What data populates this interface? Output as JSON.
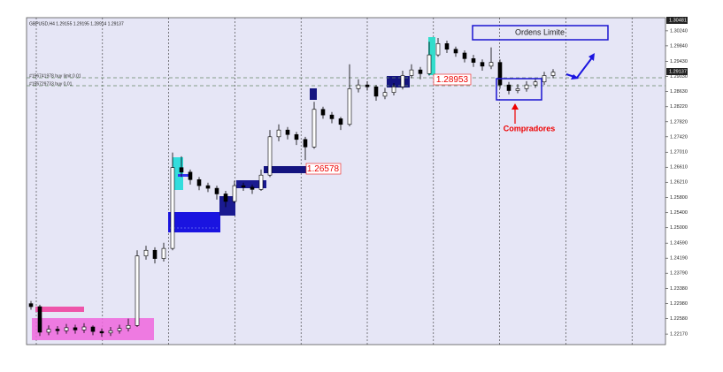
{
  "chart_data": {
    "type": "candlestick",
    "title": "GBPUSD,H4 1.29155 1.29195 1.28914 1.29137",
    "open": [
      1.2298,
      1.229,
      1.2222,
      1.223,
      1.2226,
      1.2234,
      1.2228,
      1.2236,
      1.2224,
      1.222,
      1.2226,
      1.2232,
      1.224,
      1.2425,
      1.244,
      1.2418,
      1.2445,
      1.266,
      1.2648,
      1.2628,
      1.2612,
      1.2605,
      1.259,
      1.257,
      1.2612,
      1.2608,
      1.2602,
      1.264,
      1.2742,
      1.276,
      1.2748,
      1.2735,
      1.2715,
      1.2815,
      1.28,
      1.279,
      1.2775,
      1.287,
      1.288,
      1.2875,
      1.285,
      1.286,
      1.2875,
      1.2905,
      1.292,
      1.291,
      1.296,
      1.299,
      1.2975,
      1.2965,
      1.295,
      1.294,
      1.293,
      1.294,
      1.288,
      1.2865,
      1.287,
      1.288,
      1.2888,
      1.2905
    ],
    "high": [
      1.2305,
      1.2295,
      1.224,
      1.2238,
      1.2244,
      1.2242,
      1.2246,
      1.224,
      1.2232,
      1.2236,
      1.2242,
      1.2258,
      1.244,
      1.2452,
      1.2448,
      1.246,
      1.27,
      1.269,
      1.2655,
      1.2635,
      1.262,
      1.2612,
      1.2598,
      1.2625,
      1.262,
      1.2615,
      1.2655,
      1.276,
      1.2775,
      1.2768,
      1.2755,
      1.2742,
      1.2835,
      1.2822,
      1.2808,
      1.2795,
      1.2935,
      1.2895,
      1.289,
      1.288,
      1.2872,
      1.2885,
      1.2918,
      1.2935,
      1.2928,
      1.2995,
      1.3005,
      1.2998,
      1.2982,
      1.2972,
      1.296,
      1.2948,
      1.298,
      1.2948,
      1.2888,
      1.2882,
      1.289,
      1.2898,
      1.2915,
      1.2922
    ],
    "low": [
      1.2282,
      1.2212,
      1.2214,
      1.2216,
      1.2218,
      1.2218,
      1.222,
      1.2214,
      1.221,
      1.2212,
      1.2218,
      1.2224,
      1.2236,
      1.2415,
      1.2405,
      1.241,
      1.244,
      1.2635,
      1.2615,
      1.26,
      1.2595,
      1.2575,
      1.2555,
      1.2565,
      1.2598,
      1.259,
      1.2598,
      1.2635,
      1.273,
      1.2735,
      1.272,
      1.268,
      1.271,
      1.279,
      1.2778,
      1.276,
      1.277,
      1.286,
      1.2865,
      1.2838,
      1.2842,
      1.2852,
      1.2868,
      1.2898,
      1.2895,
      1.2905,
      1.2955,
      1.2965,
      1.2955,
      1.294,
      1.2928,
      1.2918,
      1.2922,
      1.287,
      1.2855,
      1.2858,
      1.2862,
      1.2872,
      1.288,
      1.2898
    ],
    "close": [
      1.229,
      1.2222,
      1.223,
      1.2226,
      1.2234,
      1.2228,
      1.2236,
      1.2224,
      1.222,
      1.2226,
      1.2232,
      1.224,
      1.2425,
      1.244,
      1.2418,
      1.2445,
      1.266,
      1.2648,
      1.2628,
      1.2612,
      1.2605,
      1.259,
      1.257,
      1.2612,
      1.2608,
      1.2602,
      1.264,
      1.2742,
      1.276,
      1.2748,
      1.2735,
      1.2715,
      1.2815,
      1.28,
      1.279,
      1.2775,
      1.287,
      1.288,
      1.2875,
      1.285,
      1.286,
      1.2875,
      1.2905,
      1.292,
      1.291,
      1.296,
      1.299,
      1.2975,
      1.2965,
      1.295,
      1.294,
      1.293,
      1.294,
      1.288,
      1.2865,
      1.287,
      1.288,
      1.2888,
      1.2905,
      1.2914
    ],
    "up_color": "#ffffff",
    "down_color": "#000000",
    "ylim": [
      1.2189,
      1.3059
    ],
    "yticks": [
      {
        "value": 1.3024,
        "label": "1.30240"
      },
      {
        "value": 1.2984,
        "label": "1.29840"
      },
      {
        "value": 1.2943,
        "label": "1.29430"
      },
      {
        "value": 1.2903,
        "label": "1.29030"
      },
      {
        "value": 1.2863,
        "label": "1.28630"
      },
      {
        "value": 1.2822,
        "label": "1.28220"
      },
      {
        "value": 1.2782,
        "label": "1.27820"
      },
      {
        "value": 1.2742,
        "label": "1.27420"
      },
      {
        "value": 1.2701,
        "label": "1.27010"
      },
      {
        "value": 1.2661,
        "label": "1.26610"
      },
      {
        "value": 1.2621,
        "label": "1.26210"
      },
      {
        "value": 1.258,
        "label": "1.25800"
      },
      {
        "value": 1.254,
        "label": "1.25400"
      },
      {
        "value": 1.25,
        "label": "1.25000"
      },
      {
        "value": 1.2459,
        "label": "1.24590"
      },
      {
        "value": 1.2419,
        "label": "1.24190"
      },
      {
        "value": 1.2379,
        "label": "1.23790"
      },
      {
        "value": 1.2338,
        "label": "1.23380"
      },
      {
        "value": 1.2298,
        "label": "1.22980"
      },
      {
        "value": 1.2258,
        "label": "1.22580"
      },
      {
        "value": 1.2217,
        "label": "1.22170"
      }
    ],
    "grid": true,
    "price_labels": {
      "high": "1.30481",
      "current": "1.29137"
    },
    "orders": [
      "#156741978 buy limit 0.01",
      "#156729733 buy 0.01"
    ],
    "annotations": {
      "limit_box": "Ordens Limite",
      "level_a": "1.28953",
      "level_b": "1.26578",
      "buyers": "Compradores"
    }
  }
}
